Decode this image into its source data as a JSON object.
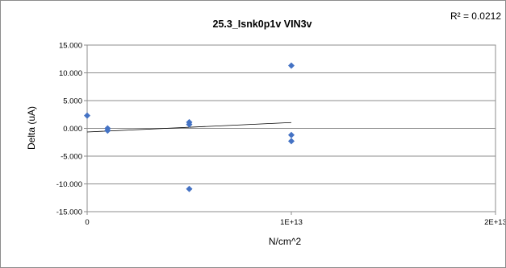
{
  "chart_data": {
    "type": "scatter",
    "title": "25.3_Isnk0p1v VIN3v",
    "annotation": "R² = 0.0212",
    "xlabel": "N/cm^2",
    "ylabel": "Delta (uA)",
    "xlim": [
      0,
      20000000000000
    ],
    "ylim": [
      -15,
      15
    ],
    "x_ticks": [
      0,
      10000000000000,
      20000000000000
    ],
    "x_tick_labels": [
      "0",
      "1E+13",
      "2E+13"
    ],
    "y_ticks": [
      15,
      10,
      5,
      0,
      -5,
      -10,
      -15
    ],
    "y_tick_labels": [
      "15.000",
      "10.000",
      "5.000",
      "0.000",
      "-5.000",
      "-10.000",
      "-15.000"
    ],
    "grid": "horizontal",
    "plot_background": "#ffffff",
    "marker_color": "#4472c4",
    "series": [
      {
        "points": [
          {
            "x": 0,
            "y": 2.3
          },
          {
            "x": 1000000000000,
            "y": 0.0
          },
          {
            "x": 1000000000000,
            "y": -0.4
          },
          {
            "x": 5000000000000,
            "y": 1.1
          },
          {
            "x": 5000000000000,
            "y": 0.7
          },
          {
            "x": 5000000000000,
            "y": -10.9
          },
          {
            "x": 10000000000000,
            "y": 11.3
          },
          {
            "x": 10000000000000,
            "y": -1.2
          },
          {
            "x": 10000000000000,
            "y": -2.3
          }
        ]
      }
    ],
    "trendline": {
      "type": "linear",
      "x": [
        0,
        10000000000000
      ],
      "y": [
        -0.65,
        1.05
      ]
    }
  }
}
